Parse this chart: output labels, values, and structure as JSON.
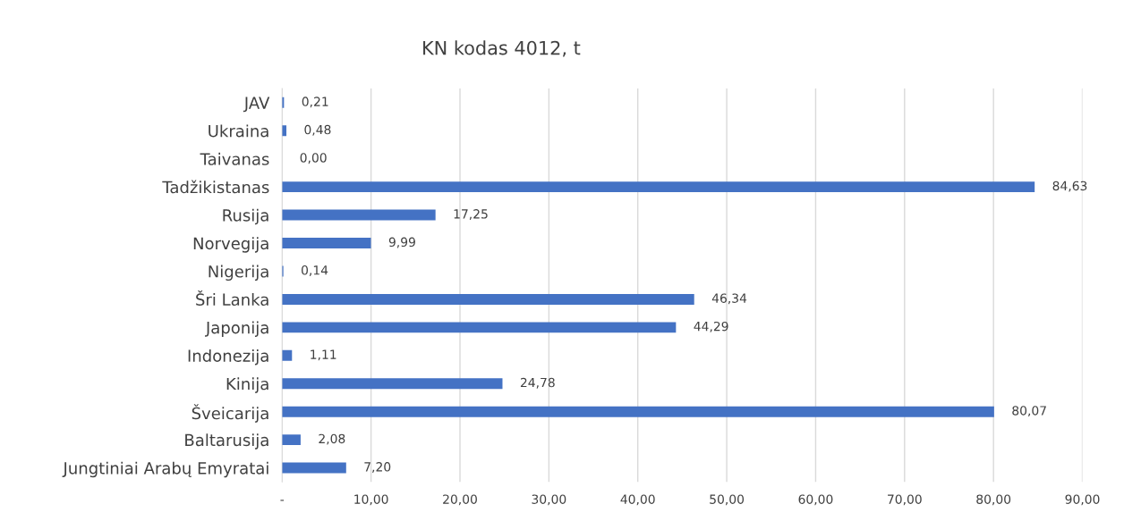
{
  "chart_data": {
    "type": "bar",
    "orientation": "horizontal",
    "title": "KN kodas 4012, t",
    "categories": [
      "JAV",
      "Ukraina",
      "Taivanas",
      "Tadžikistanas",
      "Rusija",
      "Norvegija",
      "Nigerija",
      "Šri Lanka",
      "Japonija",
      "Indonezija",
      "Kinija",
      "Šveicarija",
      "Baltarusija",
      "Jungtiniai Arabų Emyratai"
    ],
    "values": [
      0.21,
      0.48,
      0.0,
      84.63,
      17.25,
      9.99,
      0.14,
      46.34,
      44.29,
      1.11,
      24.78,
      80.07,
      2.08,
      7.2
    ],
    "value_labels": [
      "0,21",
      "0,48",
      "0,00",
      "84,63",
      "17,25",
      "9,99",
      "0,14",
      "46,34",
      "44,29",
      "1,11",
      "24,78",
      "80,07",
      "2,08",
      "7,20"
    ],
    "color": "#4472c4",
    "xlim": [
      0,
      90
    ],
    "xticks": [
      {
        "value": 0,
        "label": "-"
      },
      {
        "value": 10,
        "label": "10,00"
      },
      {
        "value": 20,
        "label": "20,00"
      },
      {
        "value": 30,
        "label": "30,00"
      },
      {
        "value": 40,
        "label": "40,00"
      },
      {
        "value": 50,
        "label": "50,00"
      },
      {
        "value": 60,
        "label": "60,00"
      },
      {
        "value": 70,
        "label": "70,00"
      },
      {
        "value": 80,
        "label": "80,00"
      },
      {
        "value": 90,
        "label": "90,00"
      }
    ],
    "grid": "x",
    "legend": false
  }
}
